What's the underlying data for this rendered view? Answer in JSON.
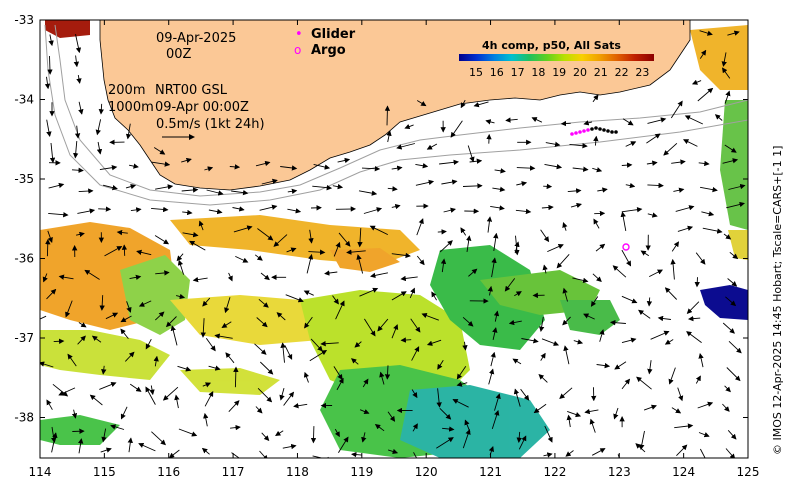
{
  "map": {
    "date": "09-Apr-2025",
    "time": "00Z",
    "contour_200": "200m",
    "contour_1000": "1000m",
    "product": "NRT00 GSL",
    "analysis_time": "09-Apr 00:00Z",
    "arrow_scale": "0.5m/s (1kt 24h)",
    "legend": {
      "glider_symbol": "•",
      "glider": "Glider",
      "argo_symbol": "o",
      "argo": "Argo"
    },
    "colorbar": {
      "title": "4h comp, p50, All Sats",
      "ticks": [
        "15",
        "16",
        "17",
        "18",
        "19",
        "20",
        "21",
        "22",
        "23"
      ],
      "colors": [
        "#00008b",
        "#0030d0",
        "#0080e0",
        "#00c0d0",
        "#20c060",
        "#60d020",
        "#b8e000",
        "#f8d000",
        "#f0a000",
        "#e06000",
        "#c02000",
        "#8b0000"
      ]
    },
    "credit": "© IMOS 12-Apr-2025 14:45 Hobart; Tscale=CARS+[-1 1]",
    "x_ticks": [
      "114",
      "115",
      "116",
      "117",
      "118",
      "119",
      "120",
      "121",
      "122",
      "123",
      "124",
      "125"
    ],
    "y_ticks": [
      "-33",
      "-34",
      "-35",
      "-36",
      "-37",
      "-38"
    ],
    "land_color": "#fbc896",
    "argo_color": "#ff00ff"
  }
}
